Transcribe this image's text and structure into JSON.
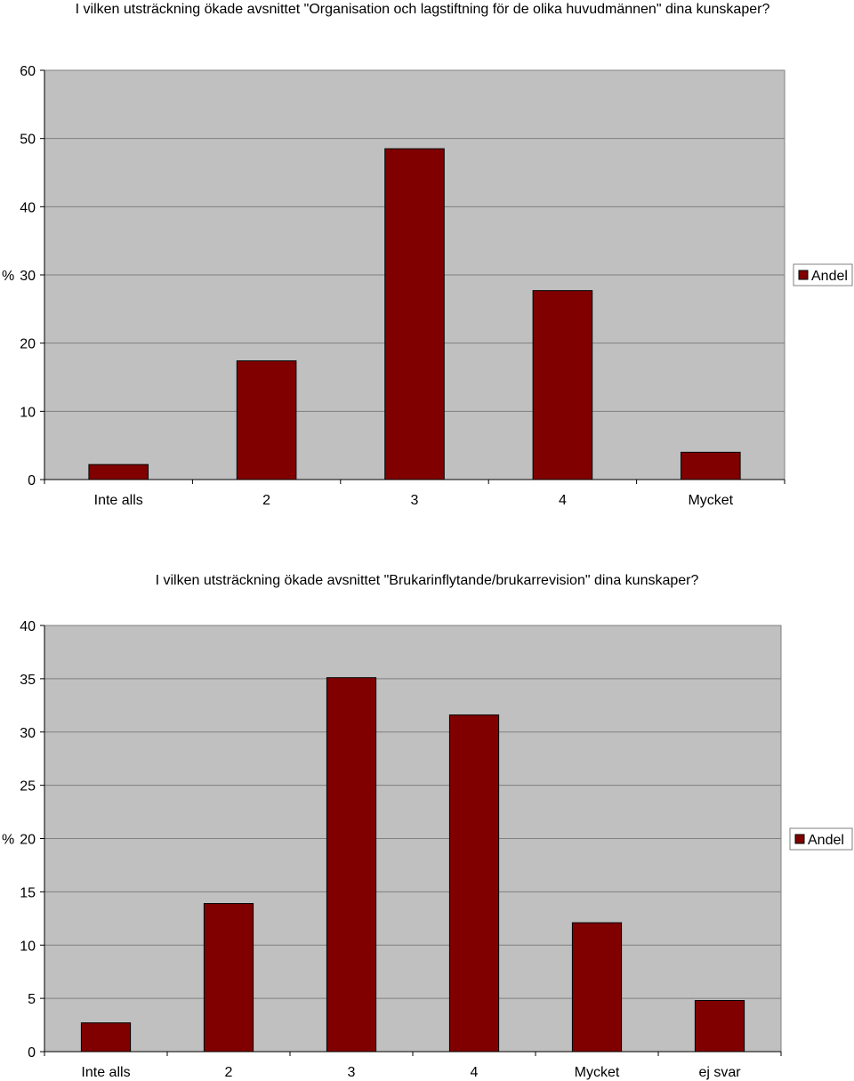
{
  "chart_data": [
    {
      "type": "bar",
      "title": "I vilken utsträckning ökade avsnittet \"Organisation och lagstiftning för  de olika huvudmännen\" dina kunskaper?",
      "ylabel": "%",
      "xlabel": "",
      "categories": [
        "Inte alls",
        "2",
        "3",
        "4",
        "Mycket"
      ],
      "series": [
        {
          "name": "Andel",
          "values": [
            2.2,
            17.4,
            48.5,
            27.7,
            4.0
          ]
        }
      ],
      "ylim": [
        0,
        60
      ],
      "yticks": [
        0,
        10,
        20,
        30,
        40,
        50,
        60
      ],
      "grid": true,
      "legend": "right"
    },
    {
      "type": "bar",
      "title": "I vilken utsträckning ökade avsnittet \"Brukarinflytande/brukarrevision\" dina kunskaper?",
      "ylabel": "%",
      "xlabel": "",
      "categories": [
        "Inte alls",
        "2",
        "3",
        "4",
        "Mycket",
        "ej svar"
      ],
      "series": [
        {
          "name": "Andel",
          "values": [
            2.7,
            13.9,
            35.1,
            31.6,
            12.1,
            4.8
          ]
        }
      ],
      "ylim": [
        0,
        40
      ],
      "yticks": [
        0,
        5,
        10,
        15,
        20,
        25,
        30,
        35,
        40
      ],
      "grid": true,
      "legend": "right"
    }
  ],
  "colors": {
    "bar": "#800000",
    "plot_background": "#c0c0c0",
    "gridline": "#7f7f7f"
  }
}
